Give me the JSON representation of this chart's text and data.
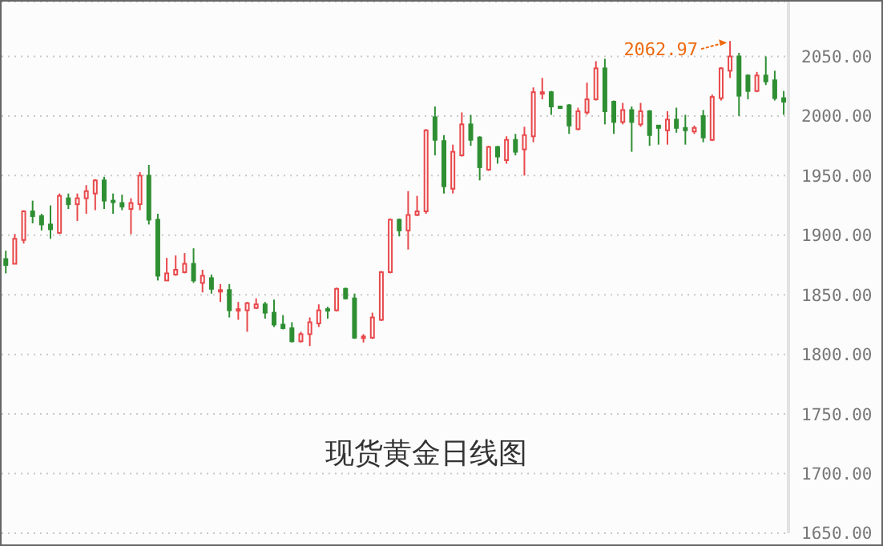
{
  "chart_data": {
    "type": "candlestick",
    "title": "现货黄金日线图",
    "categories": [
      null,
      null,
      null,
      null,
      null,
      null,
      null,
      null,
      null,
      null,
      null,
      null,
      null,
      null,
      null,
      null,
      null,
      null,
      null,
      null,
      null,
      null,
      null,
      null,
      null,
      null,
      null,
      null,
      null,
      null,
      null,
      null,
      null,
      null,
      null,
      null,
      null,
      null,
      null,
      null,
      null,
      null,
      null,
      null,
      null,
      null,
      null,
      null,
      null,
      null,
      null,
      null,
      null,
      null,
      null,
      null,
      null,
      null,
      null,
      null,
      null,
      null,
      null,
      null,
      null,
      null,
      null,
      null,
      null,
      null,
      null,
      null,
      null,
      null,
      null,
      null,
      null,
      null,
      null,
      null,
      null,
      null,
      null,
      null,
      null,
      null,
      null,
      null
    ],
    "ohlc": [
      [
        1880,
        1887,
        1868,
        1875
      ],
      [
        1876,
        1901,
        1876,
        1897
      ],
      [
        1896,
        1921,
        1893,
        1920
      ],
      [
        1920,
        1929,
        1910,
        1916
      ],
      [
        1916,
        1918,
        1904,
        1909
      ],
      [
        1909,
        1925,
        1897,
        1905
      ],
      [
        1902,
        1935,
        1901,
        1933
      ],
      [
        1931,
        1935,
        1922,
        1926
      ],
      [
        1926,
        1935,
        1912,
        1931
      ],
      [
        1931,
        1942,
        1918,
        1937
      ],
      [
        1935,
        1947,
        1921,
        1946
      ],
      [
        1946,
        1949,
        1922,
        1929
      ],
      [
        1929,
        1935,
        1918,
        1928
      ],
      [
        1927,
        1934,
        1921,
        1924
      ],
      [
        1922,
        1931,
        1901,
        1927
      ],
      [
        1926,
        1953,
        1921,
        1950
      ],
      [
        1950,
        1959,
        1909,
        1913
      ],
      [
        1913,
        1918,
        1862,
        1866
      ],
      [
        1862,
        1881,
        1862,
        1868
      ],
      [
        1867,
        1883,
        1866,
        1871
      ],
      [
        1869,
        1885,
        1868,
        1876
      ],
      [
        1876,
        1889,
        1860,
        1862
      ],
      [
        1860,
        1871,
        1852,
        1866
      ],
      [
        1864,
        1867,
        1851,
        1855
      ],
      [
        1853,
        1859,
        1844,
        1854
      ],
      [
        1854,
        1859,
        1831,
        1837
      ],
      [
        1837,
        1844,
        1829,
        1838
      ],
      [
        1837,
        1844,
        1819,
        1843
      ],
      [
        1839,
        1847,
        1838,
        1842
      ],
      [
        1842,
        1844,
        1830,
        1835
      ],
      [
        1835,
        1846,
        1823,
        1825
      ],
      [
        1825,
        1833,
        1821,
        1822
      ],
      [
        1822,
        1827,
        1810,
        1811
      ],
      [
        1811,
        1819,
        1810,
        1817
      ],
      [
        1817,
        1831,
        1807,
        1827
      ],
      [
        1826,
        1842,
        1823,
        1837
      ],
      [
        1838,
        1840,
        1830,
        1837
      ],
      [
        1837,
        1856,
        1836,
        1855
      ],
      [
        1855,
        1856,
        1846,
        1847
      ],
      [
        1847,
        1851,
        1813,
        1814
      ],
      [
        1814,
        1817,
        1810,
        1815
      ],
      [
        1814,
        1835,
        1813,
        1831
      ],
      [
        1829,
        1870,
        1828,
        1869
      ],
      [
        1869,
        1914,
        1868,
        1913
      ],
      [
        1913,
        1914,
        1899,
        1904
      ],
      [
        1904,
        1937,
        1888,
        1917
      ],
      [
        1917,
        1933,
        1916,
        1920
      ],
      [
        1920,
        1989,
        1918,
        1988
      ],
      [
        1999,
        2008,
        1967,
        1980
      ],
      [
        1979,
        1984,
        1935,
        1941
      ],
      [
        1939,
        1976,
        1935,
        1970
      ],
      [
        1967,
        2003,
        1966,
        1993
      ],
      [
        1993,
        2001,
        1975,
        1980
      ],
      [
        1982,
        1983,
        1946,
        1957
      ],
      [
        1955,
        1975,
        1954,
        1974
      ],
      [
        1974,
        1975,
        1960,
        1966
      ],
      [
        1963,
        1983,
        1960,
        1980
      ],
      [
        1980,
        1985,
        1967,
        1970
      ],
      [
        1972,
        1991,
        1950,
        1984
      ],
      [
        1983,
        2024,
        1978,
        2020
      ],
      [
        2019,
        2032,
        2014,
        2020
      ],
      [
        2020,
        2021,
        2001,
        2008
      ],
      [
        2008,
        2008,
        2007,
        2007
      ],
      [
        2009,
        2010,
        1985,
        1992
      ],
      [
        1989,
        2007,
        1988,
        2004
      ],
      [
        2003,
        2028,
        2001,
        2014
      ],
      [
        2014,
        2046,
        2013,
        2040
      ],
      [
        2040,
        2048,
        1993,
        2004
      ],
      [
        2012,
        2013,
        1985,
        1995
      ],
      [
        1995,
        2011,
        1993,
        2005
      ],
      [
        2005,
        2008,
        1970,
        1995
      ],
      [
        1993,
        2011,
        1991,
        2004
      ],
      [
        2004,
        2005,
        1975,
        1984
      ],
      [
        1992,
        1992,
        1976,
        1990
      ],
      [
        1988,
        2004,
        1976,
        1997
      ],
      [
        1997,
        2007,
        1986,
        1990
      ],
      [
        1990,
        2001,
        1976,
        1988
      ],
      [
        1987,
        1992,
        1985,
        1990
      ],
      [
        2000,
        2005,
        1978,
        1982
      ],
      [
        1980,
        2018,
        1979,
        2016
      ],
      [
        2015,
        2041,
        2013,
        2040
      ],
      [
        2038,
        2062.97,
        2032,
        2050
      ],
      [
        2050,
        2053,
        2000,
        2017
      ],
      [
        2034,
        2035,
        2014,
        2021
      ],
      [
        2021,
        2037,
        2020,
        2034
      ],
      [
        2034,
        2050,
        2026,
        2029
      ],
      [
        2030,
        2038,
        2013,
        2015
      ],
      [
        2015,
        2021,
        2001,
        2012
      ]
    ],
    "ylim": [
      1650,
      2096
    ],
    "yticks": [
      {
        "value": 1650,
        "label": "1650.00"
      },
      {
        "value": 1700,
        "label": "1700.00"
      },
      {
        "value": 1750,
        "label": "1750.00"
      },
      {
        "value": 1800,
        "label": "1800.00"
      },
      {
        "value": 1850,
        "label": "1850.00"
      },
      {
        "value": 1900,
        "label": "1900.00"
      },
      {
        "value": 1950,
        "label": "1950.00"
      },
      {
        "value": 2000,
        "label": "2000.00"
      },
      {
        "value": 2050,
        "label": "2050.00"
      }
    ],
    "annotations": [
      "2062.97"
    ],
    "grid": "y",
    "tick_labels": "y"
  }
}
